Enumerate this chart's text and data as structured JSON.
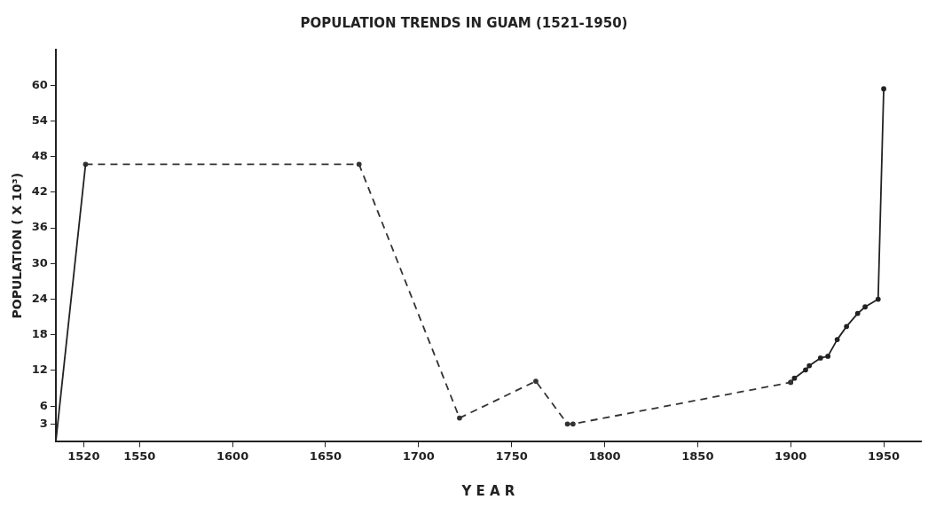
{
  "chart_data": {
    "type": "line",
    "title": "POPULATION TRENDS IN GUAM (1521-1950)",
    "xlabel": "Y E A R",
    "ylabel": "POPULATION ( X 10³)",
    "xlim": [
      1505,
      1970
    ],
    "xticks": [
      1520,
      1550,
      1600,
      1650,
      1700,
      1750,
      1800,
      1850,
      1900,
      1950
    ],
    "ylim": [
      0,
      66
    ],
    "yticks": [
      3,
      6,
      12,
      18,
      24,
      30,
      36,
      42,
      48,
      54,
      60
    ],
    "grid": false,
    "legend": false,
    "series": [
      {
        "color": "#222222",
        "line_style": "solid",
        "marker": "none",
        "x": [
          1505,
          1521
        ],
        "values": [
          0,
          46.7
        ]
      },
      {
        "color": "#333333",
        "line_style": "dashed",
        "marker": "circle",
        "x": [
          1521,
          1668,
          1722,
          1763,
          1780,
          1783,
          1900
        ],
        "values": [
          46.7,
          46.7,
          4,
          10.2,
          3,
          3,
          10
        ]
      },
      {
        "color": "#222222",
        "line_style": "solid",
        "marker": "circle",
        "x": [
          1900,
          1902,
          1908,
          1910,
          1916,
          1920,
          1925,
          1930,
          1936,
          1940,
          1947,
          1950
        ],
        "values": [
          10,
          10.7,
          12.1,
          12.8,
          14.1,
          14.4,
          17.2,
          19.4,
          21.6,
          22.7,
          24,
          59.4
        ]
      }
    ]
  }
}
